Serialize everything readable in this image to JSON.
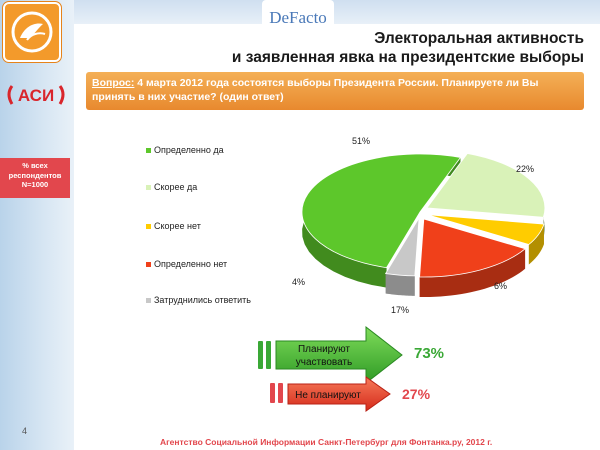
{
  "header": {
    "brand": "DeFacto",
    "title_line1": "Электоральная активность",
    "title_line2": "и заявленная явка на президентские выборы"
  },
  "sidebar": {
    "org_logo": "АСИ",
    "respondents_line1": "% всех",
    "respondents_line2": "респондентов",
    "respondents_line3": "N=1000",
    "page_number": "4"
  },
  "question": {
    "label": "Вопрос:",
    "text": " 4 марта 2012 года состоятся выборы Президента России. Планируете ли Вы принять в них участие? (один ответ)"
  },
  "chart_data": {
    "type": "pie",
    "categories": [
      "Определенно да",
      "Скорее да",
      "Скорее нет",
      "Определенно нет",
      "Затруднились ответить"
    ],
    "values": [
      51,
      22,
      6,
      17,
      4
    ],
    "value_labels": [
      "51%",
      "22%",
      "6%",
      "17%",
      "4%"
    ],
    "colors": [
      "#5dc72b",
      "#d9f2b8",
      "#ffcc00",
      "#f0401a",
      "#c8c8c8"
    ],
    "legend_placement": "left",
    "title": ""
  },
  "summary": {
    "plan": {
      "label_line1": "Планируют",
      "label_line2": "участвовать",
      "value": "73%",
      "color": "#3aa836"
    },
    "not_plan": {
      "label": "Не планируют",
      "value": "27%",
      "color": "#e2474d"
    }
  },
  "footer": {
    "text": "Агентство Социальной Информации Санкт-Петербург для Фонтанка.ру, 2012 г."
  }
}
